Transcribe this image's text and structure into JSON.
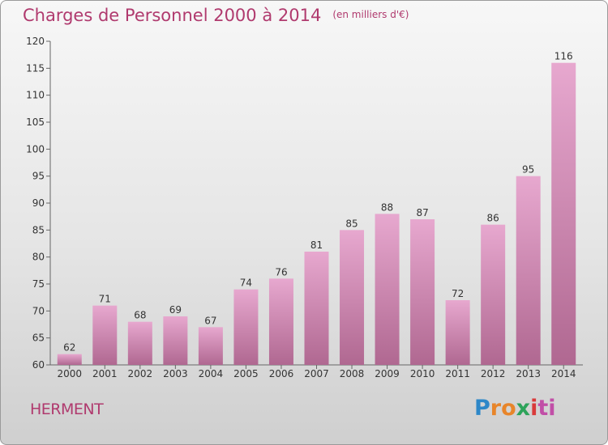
{
  "title": "Charges de Personnel 2000 à 2014",
  "subtitle": "(en milliers d'€)",
  "commune": "HERMENT",
  "logo": {
    "parts": [
      "P",
      "ro",
      "x",
      "i",
      "ti"
    ],
    "colors": [
      "#2d87c8",
      "#e8852a",
      "#2da35a",
      "#d93a3a",
      "#c14fa7"
    ]
  },
  "colors": {
    "bar_light": "#e7a8cf",
    "bar_dark": "#b06891",
    "text": "#333333",
    "accent": "#b03a6e"
  },
  "chart_data": {
    "type": "bar",
    "title": "Charges de Personnel 2000 à 2014",
    "subtitle": "(en milliers d'€)",
    "categories": [
      "2000",
      "2001",
      "2002",
      "2003",
      "2004",
      "2005",
      "2006",
      "2007",
      "2008",
      "2009",
      "2010",
      "2011",
      "2012",
      "2013",
      "2014"
    ],
    "values": [
      62,
      71,
      68,
      69,
      67,
      74,
      76,
      81,
      85,
      88,
      87,
      72,
      86,
      95,
      116
    ],
    "ylim": [
      60,
      120
    ],
    "yticks": [
      60,
      65,
      70,
      75,
      80,
      85,
      90,
      95,
      100,
      105,
      110,
      115,
      120
    ],
    "xlabel": "",
    "ylabel": "",
    "grid": false,
    "legend": "none"
  }
}
